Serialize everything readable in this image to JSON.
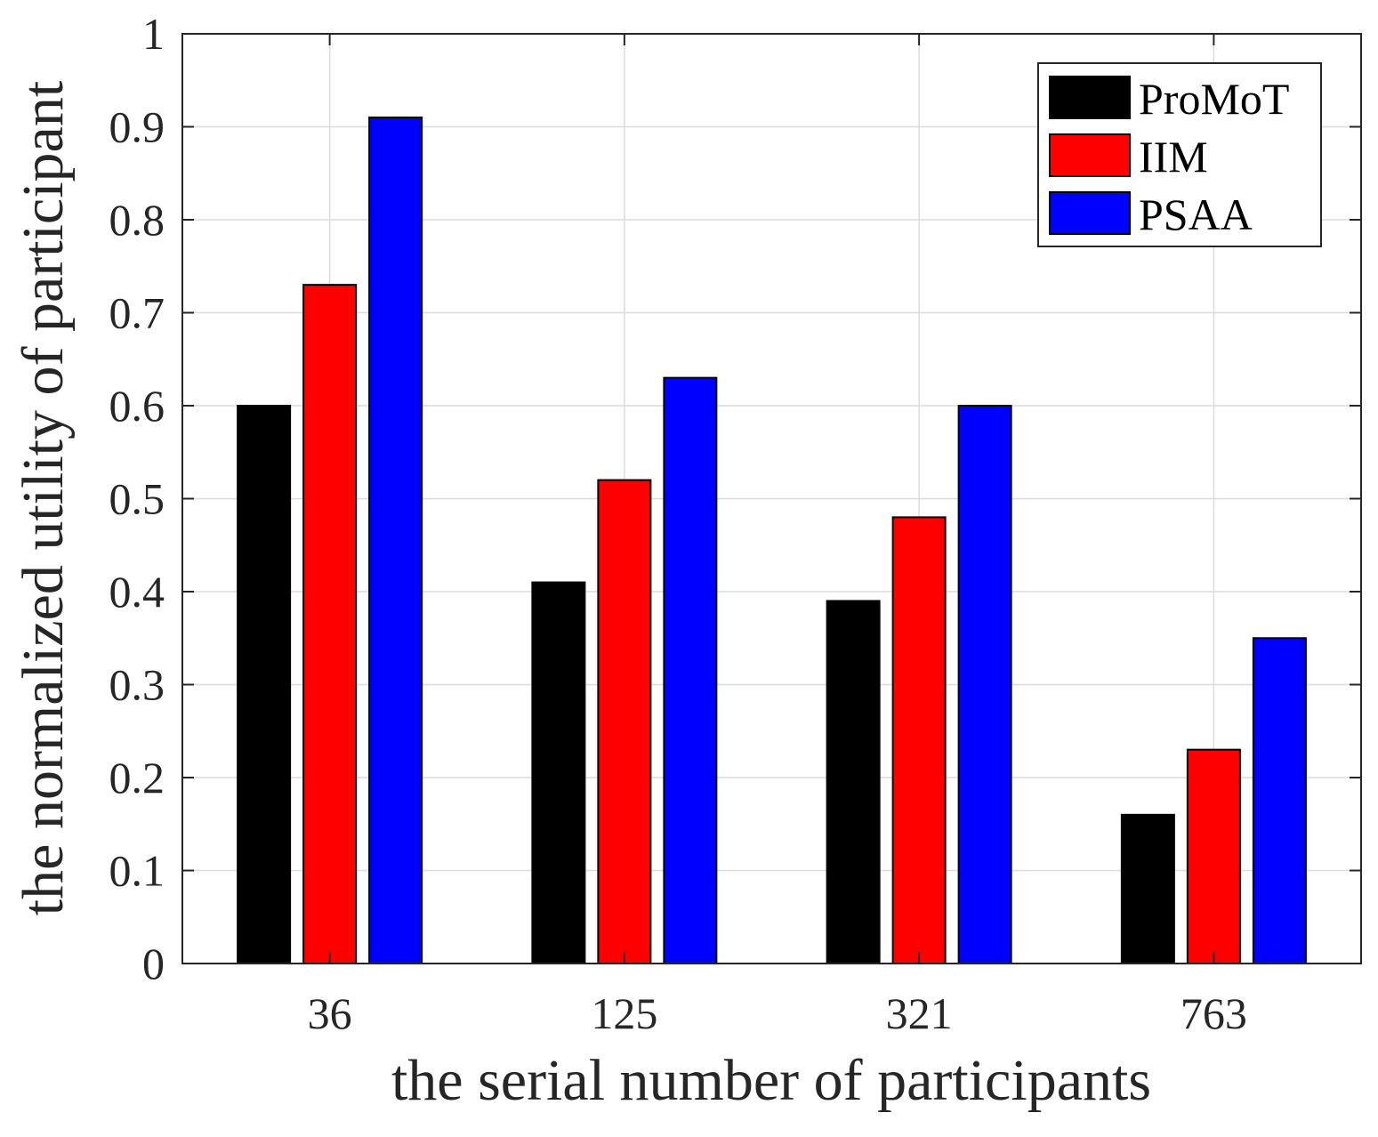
{
  "chart_data": {
    "type": "bar",
    "title": "",
    "xlabel": "the serial number of participants",
    "ylabel": "the normalized utility of participant",
    "categories": [
      "36",
      "125",
      "321",
      "763"
    ],
    "series": [
      {
        "name": "ProMoT",
        "color": "#000000",
        "values": [
          0.6,
          0.41,
          0.39,
          0.16
        ]
      },
      {
        "name": "IIM",
        "color": "#ff0000",
        "values": [
          0.73,
          0.52,
          0.48,
          0.23
        ]
      },
      {
        "name": "PSAA",
        "color": "#0000ff",
        "values": [
          0.91,
          0.63,
          0.6,
          0.35
        ]
      }
    ],
    "ylim": [
      0,
      1
    ],
    "yticks": [
      "0",
      "0.1",
      "0.2",
      "0.3",
      "0.4",
      "0.5",
      "0.6",
      "0.7",
      "0.8",
      "0.9",
      "1"
    ],
    "grid": true,
    "legend_position": "top-right"
  }
}
